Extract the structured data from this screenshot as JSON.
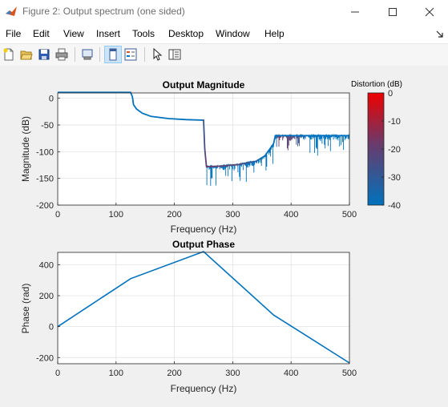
{
  "window": {
    "title": "Figure 2: Output spectrum (one sided)"
  },
  "menu": [
    "File",
    "Edit",
    "View",
    "Insert",
    "Tools",
    "Desktop",
    "Window",
    "Help"
  ],
  "toolbar": [
    "new-figure-icon",
    "open-file-icon",
    "save-icon",
    "print-icon",
    "print-preview-icon",
    "dock-icon",
    "legend-icon",
    "pointer-icon",
    "property-editor-icon"
  ],
  "colors": {
    "series": "#0072bd",
    "grid": "#dedede"
  },
  "chart_data": [
    {
      "type": "line",
      "title": "Output Magnitude",
      "xlabel": "Frequency (Hz)",
      "ylabel": "Magnitude (dB)",
      "xlim": [
        0,
        500
      ],
      "ylim": [
        -200,
        10
      ],
      "xticks": [
        "0",
        "100",
        "200",
        "300",
        "400",
        "500"
      ],
      "yticks": [
        "0",
        "-50",
        "-100",
        "-150",
        "-200"
      ],
      "grid": true,
      "series": [
        {
          "x": [
            0,
            125,
            128,
            130,
            135,
            145,
            160,
            190,
            220,
            250,
            252,
            255,
            280,
            310,
            340,
            355,
            370,
            373,
            500
          ],
          "y": [
            11,
            11,
            3,
            -12,
            -20,
            -28,
            -34,
            -38,
            -40,
            -41,
            -95,
            -128,
            -127,
            -124,
            -118,
            -108,
            -85,
            -70,
            -70
          ]
        }
      ],
      "colorbar": {
        "label": "Distortion (dB)",
        "ticks": [
          "0",
          "-10",
          "-20",
          "-30",
          "-40"
        ],
        "range": [
          -40,
          0
        ],
        "colors": [
          "#0072bd",
          "#ee0000"
        ]
      }
    },
    {
      "type": "line",
      "title": "Output Phase",
      "xlabel": "Frequency (Hz)",
      "ylabel": "Phase (rad)",
      "xlim": [
        0,
        500
      ],
      "ylim": [
        -240,
        480
      ],
      "xticks": [
        "0",
        "100",
        "200",
        "300",
        "400",
        "500"
      ],
      "yticks": [
        "400",
        "200",
        "0",
        "-200"
      ],
      "grid": true,
      "series": [
        {
          "x": [
            0,
            125,
            250,
            370,
            500
          ],
          "y": [
            0,
            310,
            485,
            75,
            -235
          ]
        }
      ]
    }
  ]
}
